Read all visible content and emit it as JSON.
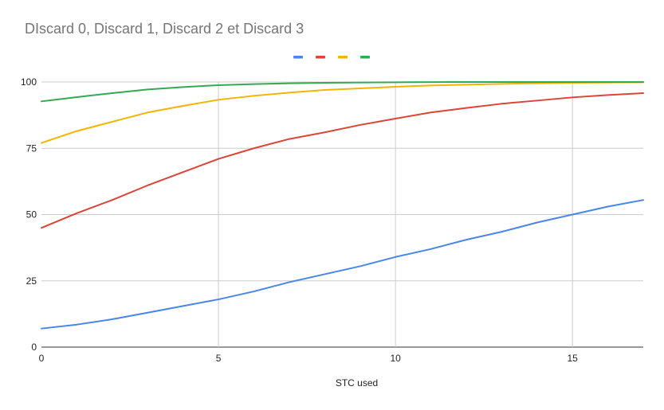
{
  "chart_data": {
    "type": "line",
    "title": "DIscard 0, Discard 1, Discard 2 et Discard 3",
    "xlabel": "STC used",
    "ylabel": "",
    "xlim": [
      0,
      17
    ],
    "ylim": [
      0,
      100
    ],
    "x_ticks": [
      0,
      5,
      10,
      15
    ],
    "y_ticks": [
      0,
      25,
      50,
      75,
      100
    ],
    "grid": true,
    "legend_position": "top",
    "x": [
      0,
      1,
      2,
      3,
      4,
      5,
      6,
      7,
      8,
      9,
      10,
      11,
      12,
      13,
      14,
      15,
      16,
      17
    ],
    "series": [
      {
        "color": "#4a86e8",
        "values": [
          7,
          8.5,
          10.5,
          13,
          15.5,
          18,
          21,
          24.5,
          27.5,
          30.5,
          34,
          37,
          40.5,
          43.5,
          47,
          50,
          53,
          55.5
        ]
      },
      {
        "color": "#db4437",
        "values": [
          45,
          50.5,
          55.5,
          61,
          66,
          71,
          75,
          78.5,
          81,
          83.8,
          86.2,
          88.5,
          90.2,
          91.8,
          93,
          94.2,
          95.1,
          95.8
        ]
      },
      {
        "color": "#f4b400",
        "values": [
          77,
          81.5,
          85,
          88.5,
          91,
          93.3,
          94.8,
          96,
          97,
          97.6,
          98.2,
          98.7,
          99,
          99.3,
          99.5,
          99.7,
          99.8,
          99.9
        ]
      },
      {
        "color": "#34a853",
        "values": [
          92.7,
          94.3,
          95.8,
          97.2,
          98.1,
          98.8,
          99.2,
          99.5,
          99.7,
          99.8,
          99.9,
          99.95,
          100,
          100,
          100,
          100,
          100,
          100
        ]
      }
    ]
  }
}
